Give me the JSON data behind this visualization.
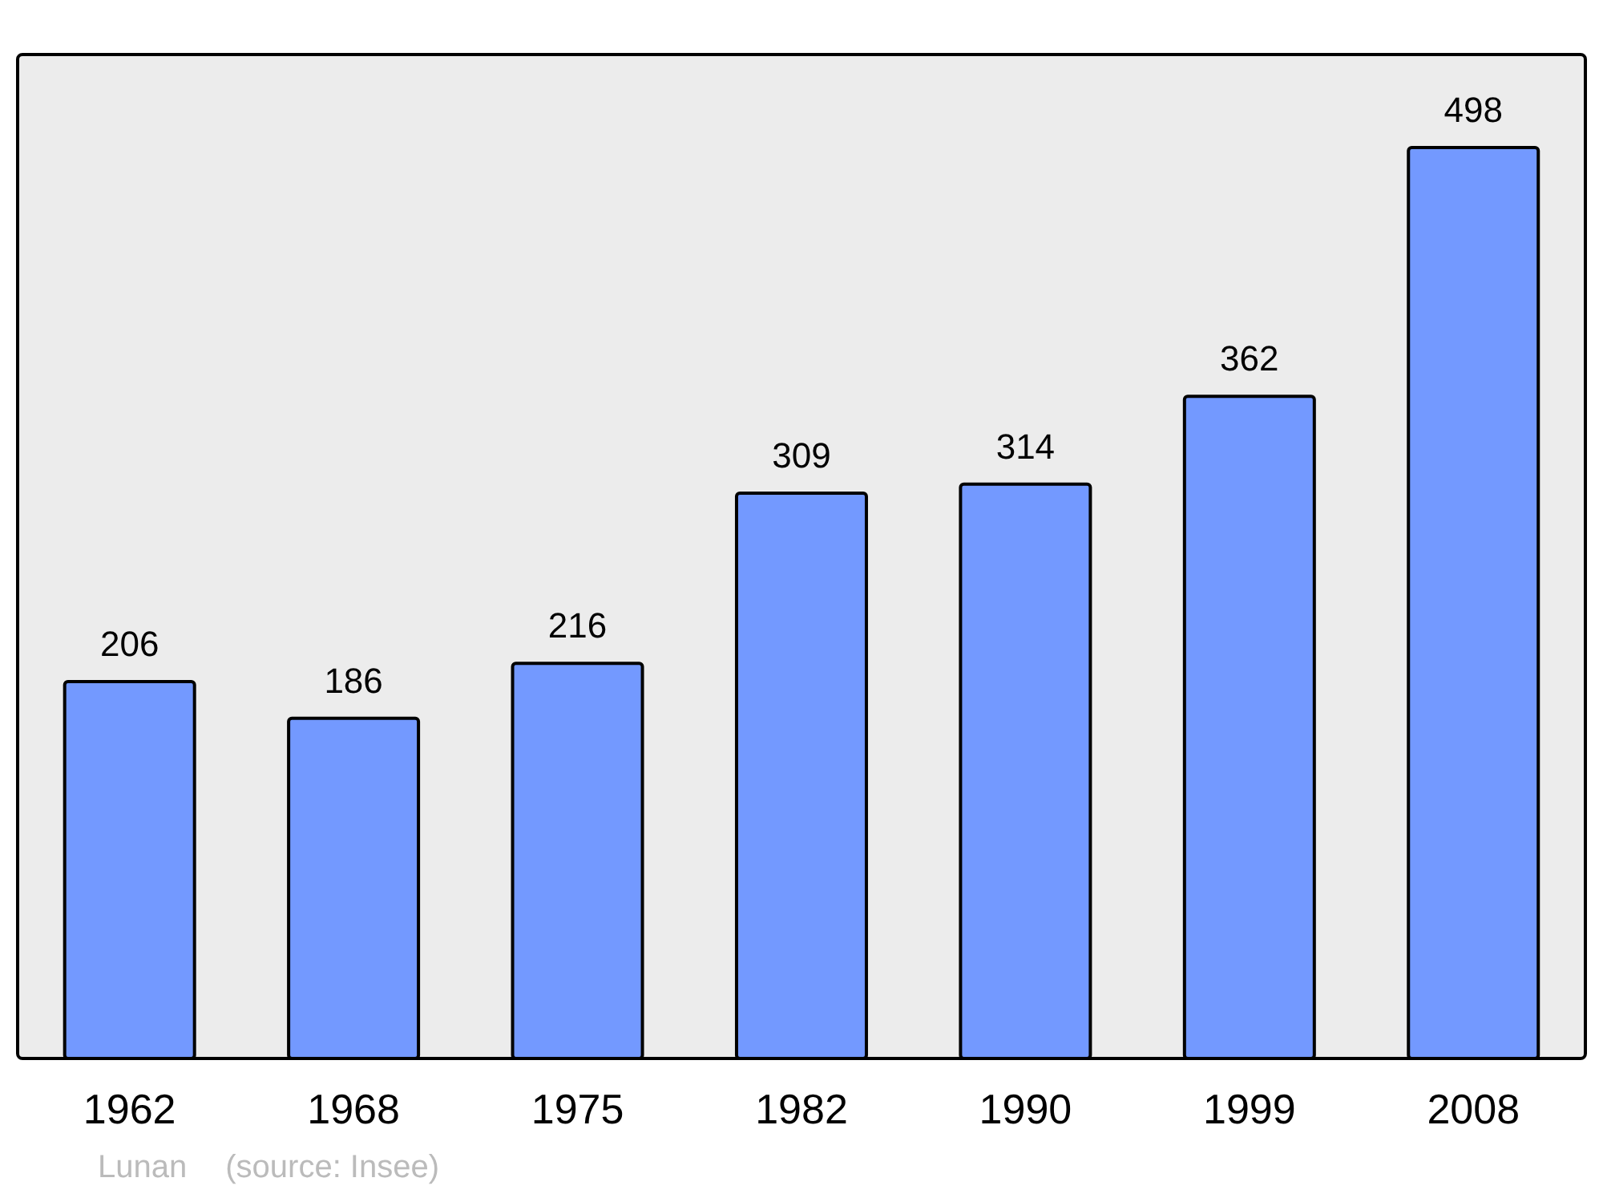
{
  "chart_data": {
    "type": "bar",
    "categories": [
      "1962",
      "1968",
      "1975",
      "1982",
      "1990",
      "1999",
      "2008"
    ],
    "values": [
      206,
      186,
      216,
      309,
      314,
      362,
      498
    ],
    "color": "#7399ff",
    "data_labels": true,
    "annotations": [
      "Lunan",
      "(source: Insee)"
    ]
  }
}
